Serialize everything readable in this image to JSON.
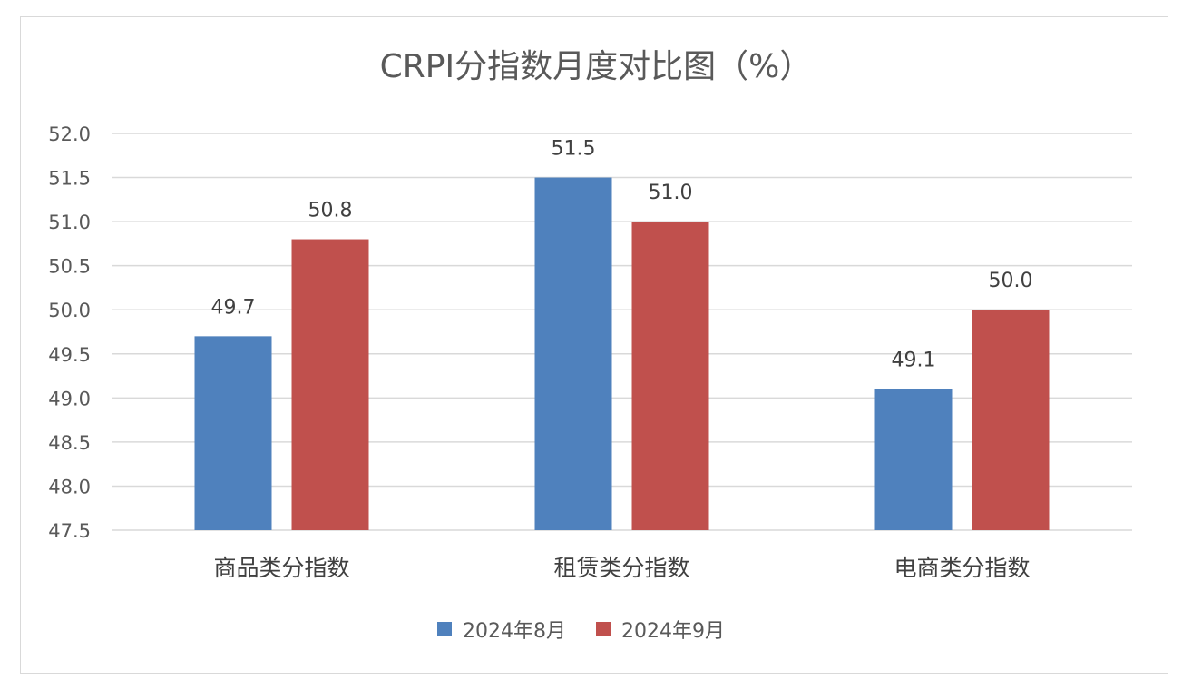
{
  "chart_data": {
    "type": "bar",
    "title": "CRPI分指数月度对比图（%）",
    "categories": [
      "商品类分指数",
      "租赁类分指数",
      "电商类分指数"
    ],
    "series": [
      {
        "name": "2024年8月",
        "values": [
          49.7,
          51.5,
          49.1
        ],
        "color": "#4f81bd"
      },
      {
        "name": "2024年9月",
        "values": [
          50.8,
          51.0,
          50.0
        ],
        "color": "#c0504d"
      }
    ],
    "ylim": [
      47.5,
      52.0
    ],
    "yticks": [
      "52.0",
      "51.5",
      "51.0",
      "50.5",
      "50.0",
      "49.5",
      "49.0",
      "48.5",
      "48.0",
      "47.5"
    ],
    "grid": true,
    "legend": "bottom",
    "data_labels": true
  }
}
